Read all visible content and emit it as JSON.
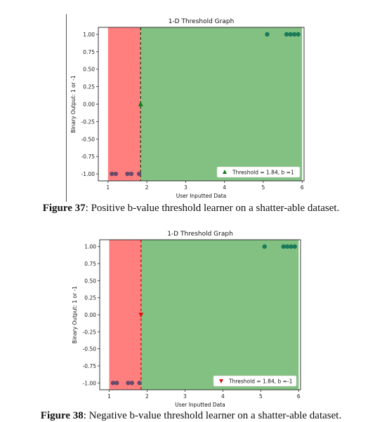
{
  "chart_data": [
    {
      "type": "scatter",
      "title": "1-D Threshold Graph",
      "xlabel": "User Inputted Data",
      "ylabel": "Binary Output: 1 or -1",
      "xlim": [
        0.75,
        6.05
      ],
      "ylim": [
        -1.1,
        1.1
      ],
      "xticks": [
        "1",
        "2",
        "3",
        "4",
        "5",
        "6"
      ],
      "yticks": [
        "1.00",
        "0.75",
        "0.50",
        "0.25",
        "0.00",
        "-0.25",
        "-0.50",
        "-0.75",
        "-1.00"
      ],
      "regions": [
        {
          "from": 1.0,
          "to": 1.84,
          "color": "#ff7f7f"
        },
        {
          "from": 1.84,
          "to": 6.0,
          "color": "#82c182"
        }
      ],
      "threshold": 1.84,
      "b": 1,
      "marker_color": "#137a13",
      "marker": "up-triangle",
      "series": [
        {
          "x": [
            1.1,
            1.2,
            1.5,
            1.6,
            1.8
          ],
          "y": [
            -1,
            -1,
            -1,
            -1,
            -1
          ]
        },
        {
          "x": [
            5.1,
            5.6,
            5.7,
            5.8,
            5.9
          ],
          "y": [
            1,
            1,
            1,
            1,
            1
          ]
        }
      ],
      "point_colors": {
        "negative": "#6a4a6a",
        "positive": "#1a7a5a"
      },
      "legend": {
        "label": "Threshold = 1.84, b =1",
        "position": "lower-right"
      }
    },
    {
      "type": "scatter",
      "title": "1-D Threshold Graph",
      "xlabel": "User Inputted Data",
      "ylabel": "Binary Output: 1 or -1",
      "xlim": [
        0.75,
        6.05
      ],
      "ylim": [
        -1.1,
        1.1
      ],
      "xticks": [
        "1",
        "2",
        "3",
        "4",
        "5",
        "6"
      ],
      "yticks": [
        "1.00",
        "0.75",
        "0.50",
        "0.25",
        "0.00",
        "-0.25",
        "-0.50",
        "-0.75",
        "-1.00"
      ],
      "regions": [
        {
          "from": 1.0,
          "to": 1.84,
          "color": "#ff7f7f"
        },
        {
          "from": 1.84,
          "to": 6.0,
          "color": "#82c182"
        }
      ],
      "threshold": 1.84,
      "b": -1,
      "marker_color": "#e01010",
      "marker": "down-triangle",
      "series": [
        {
          "x": [
            1.1,
            1.2,
            1.5,
            1.6,
            1.8
          ],
          "y": [
            -1,
            -1,
            -1,
            -1,
            -1
          ]
        },
        {
          "x": [
            5.1,
            5.6,
            5.7,
            5.8,
            5.9
          ],
          "y": [
            1,
            1,
            1,
            1,
            1
          ]
        }
      ],
      "point_colors": {
        "negative": "#6a4a6a",
        "positive": "#1a7a5a"
      },
      "legend": {
        "label": "Threshold = 1.84, b =-1",
        "position": "lower-right"
      }
    }
  ],
  "captions": [
    {
      "label": "Figure 37",
      "text": ": Positive b-value threshold learner on a shatter-able dataset."
    },
    {
      "label": "Figure 38",
      "text": ": Negative b-value threshold learner on a shatter-able dataset."
    }
  ]
}
